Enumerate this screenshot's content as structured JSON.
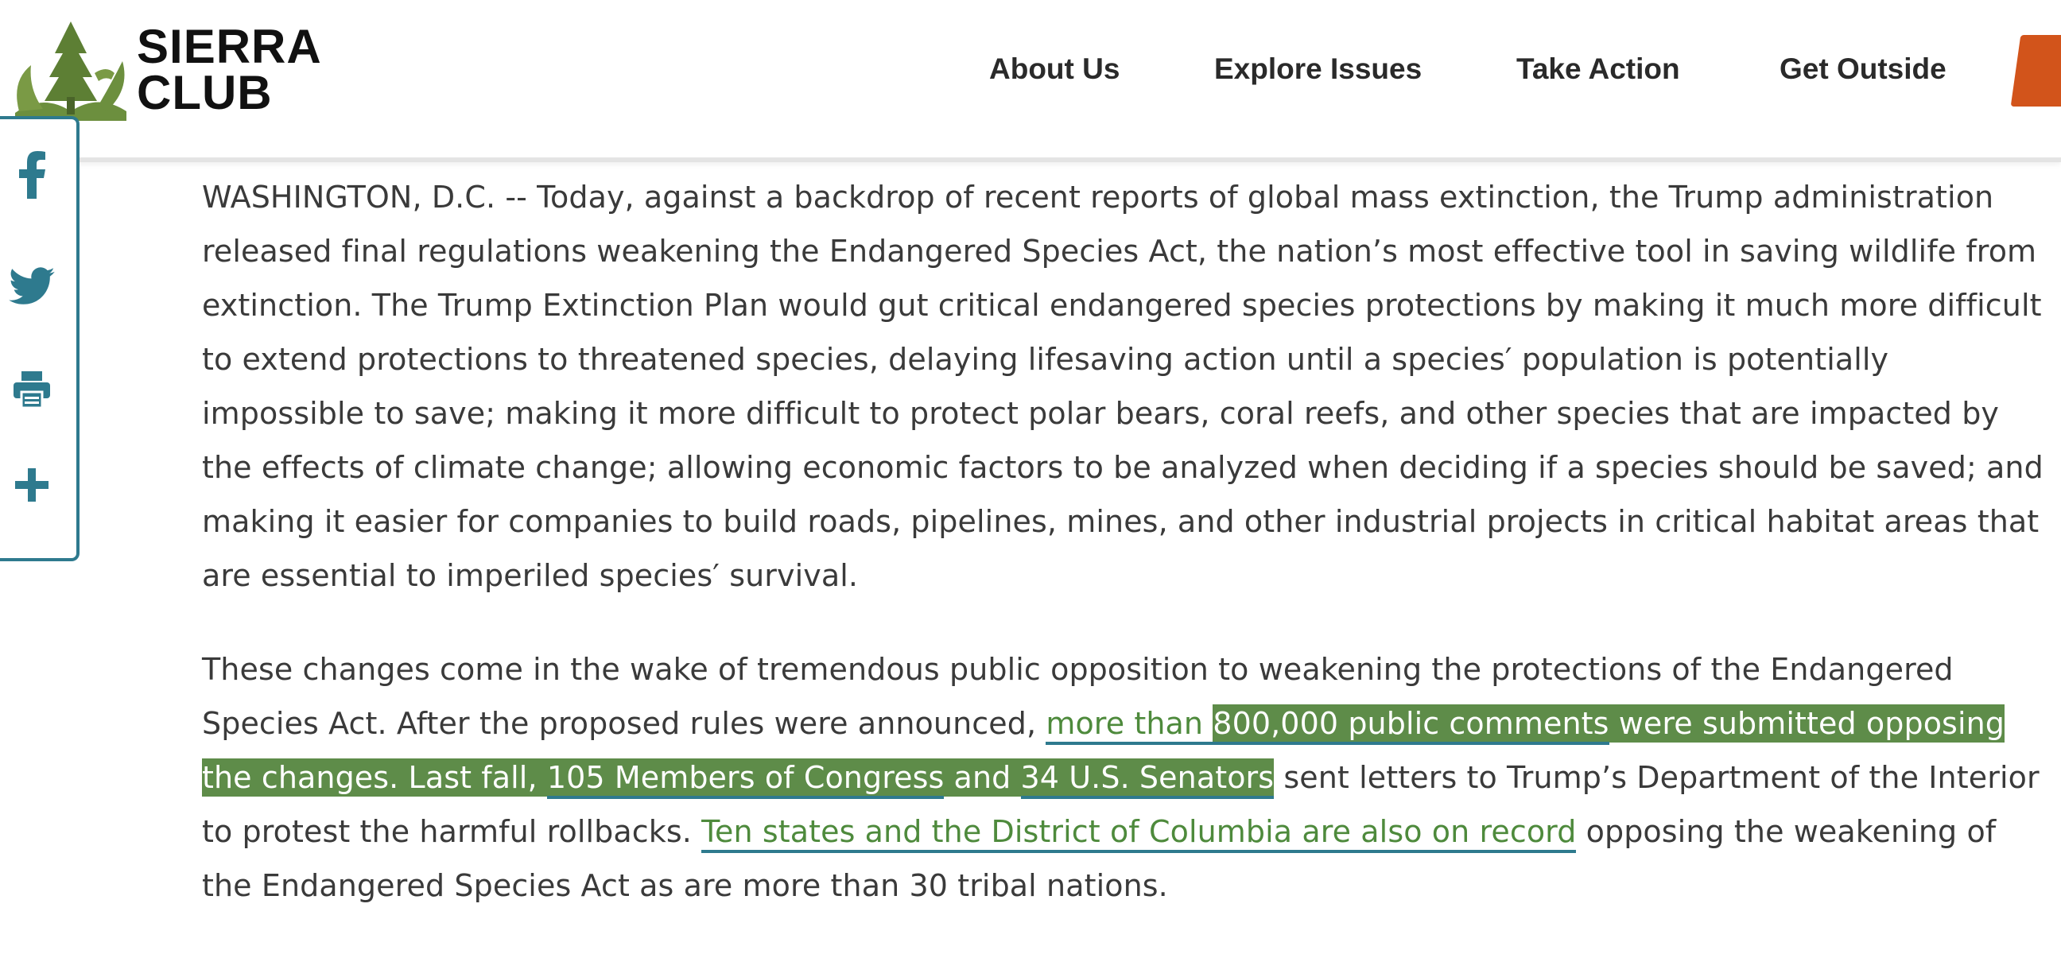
{
  "site": {
    "brand_line1": "SIERRA",
    "brand_line2": "CLUB"
  },
  "nav": {
    "about": "About Us",
    "explore": "Explore Issues",
    "action": "Take Action",
    "outside": "Get Outside"
  },
  "share": {
    "facebook_icon": "facebook-icon",
    "twitter_icon": "twitter-icon",
    "print_icon": "print-icon",
    "more_icon": "plus-icon"
  },
  "article": {
    "para1": "WASHINGTON, D.C. -- Today, against a backdrop of recent reports of global mass extinction, the Trump administration released final regulations weakening the Endangered Species Act, the nation’s most effective tool in saving wildlife from extinction. The Trump Extinction Plan would gut critical endangered species protections by making it much more difficult to extend protections to threatened species, delaying lifesaving action until a species′ population is potentially impossible to save; making it more difficult to protect polar bears, coral reefs, and other species that are impacted by the effects of climate change; allowing economic factors to be analyzed when deciding if a species should be saved; and making it easier for companies to build roads, pipelines, mines, and other industrial projects in critical habitat areas that are essential to imperiled species′ survival.",
    "para2_a": "These changes come in the wake of tremendous public opposition to weakening the protections of the Endangered Species Act. After the proposed rules were announced, ",
    "para2_link1a": "more than ",
    "para2_link1b": "800,000 public comments",
    "para2_b": " were submitted opposing the changes. Last fall, ",
    "para2_link2": "105 Members of Congress",
    "para2_c": " and ",
    "para2_link3": "34 U.S. Senators",
    "para2_d": " sent letters to Trump’s Department of the Interior to protest the harmful rollbacks. ",
    "para2_link4": "Ten states and the District of Columbia are also on record",
    "para2_e": " opposing the weakening of the Endangered Species Act as are more than 30 tribal nations."
  },
  "colors": {
    "accent_green": "#5e8c49",
    "link_teal": "#2e7a8e",
    "donate_orange": "#d2541b"
  }
}
